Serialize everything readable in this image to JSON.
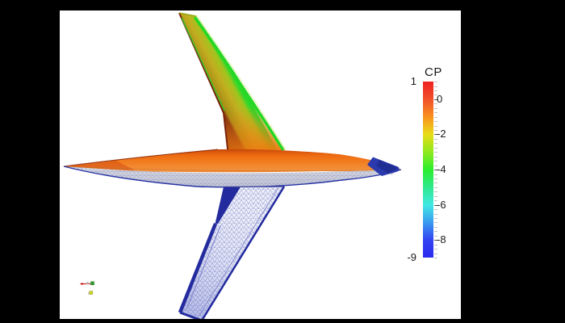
{
  "window": {
    "background": "#000000",
    "viewport_background": "#ffffff"
  },
  "colorbar": {
    "title": "CP",
    "max_label": "1",
    "min_label": "-9",
    "value_max": 1,
    "value_min": -9,
    "minor_tick_step": 0.25,
    "ticks": [
      {
        "label": "0",
        "value": 0
      },
      {
        "label": "-2",
        "value": -2
      },
      {
        "label": "-4",
        "value": -4
      },
      {
        "label": "-6",
        "value": -6
      },
      {
        "label": "-8",
        "value": -8
      }
    ],
    "gradient_stops": [
      "#ee2222",
      "#f1502a",
      "#f9901e",
      "#e8dd16",
      "#8fe81e",
      "#2cee2c",
      "#2fe98d",
      "#41e9e3",
      "#3a9bf0",
      "#3343f2",
      "#2b2bee"
    ]
  },
  "orientation_axes": {
    "x_color": "#cc2525",
    "y_color": "#2f9e2f",
    "z_color": "#cdd32a"
  },
  "model": {
    "colors": {
      "fuselage_top": "#ee6c10",
      "fuselage_nose_ridge": "#8a2808",
      "fuselage_belly_mesh_fill": "#c9cbda",
      "fuselage_tail_patch": "#2b3aad",
      "upper_wing_body": "#c2ae20",
      "upper_wing_leading_edge": "#7a2408",
      "upper_wing_trailing_edge": "#24d824",
      "lower_wing_mesh_fill": "#eef0fa",
      "mesh_wireframe_edge": "#232b9e"
    }
  },
  "chart_data": {
    "type": "heatmap",
    "title": "CP",
    "field": "surface pressure coefficient (CP) on aircraft wing-body",
    "colorbar": {
      "label": "CP",
      "min": -9,
      "max": 1,
      "major_ticks": [
        1,
        0,
        -2,
        -4,
        -6,
        -8,
        -9
      ],
      "minor_tick_step": 0.25,
      "colormap": "rainbow (red = CP 1 high, green = CP -4, blue = CP -9 low)"
    },
    "legend_position": "right"
  }
}
